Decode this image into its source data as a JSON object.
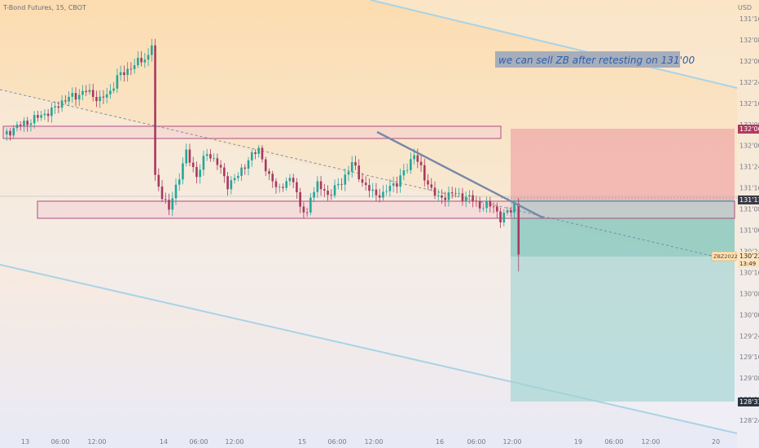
{
  "header": {
    "symbol": "T-Bond Futures, 15, CBOT",
    "currency": "USD"
  },
  "annotation": {
    "text": "we can sell ZB after retesting on 131'00"
  },
  "price_badges": {
    "stop": "132'06",
    "entry": "131'11",
    "symbol": "ZBZ2022",
    "current_price": "130'22",
    "countdown": "13:49",
    "target": "128'31"
  },
  "colors": {
    "bull": "#26a69a",
    "bear": "#a8395f",
    "zone_border": "#b04d7f",
    "trendline": "#7788a8",
    "channel": "#a9d3e6",
    "stop_zone": "#f0a6a6",
    "profit_zone": "#9fd4d2",
    "annotation_bg": "#a6aebc",
    "annotation_text": "#2f5fa8"
  },
  "chart_data": {
    "type": "candlestick",
    "interval": "15",
    "y_tick_labels": [
      "131'16",
      "132'08",
      "132'00",
      "132'24",
      "132'16",
      "132'08",
      "132'00",
      "131'24",
      "131'16",
      "131'08",
      "131'00",
      "130'24",
      "130'16",
      "130'08",
      "130'00",
      "129'24",
      "129'16",
      "129'08",
      "129'00",
      "128'24"
    ],
    "x_tick_labels": [
      "13",
      "06:00",
      "12:00",
      "14",
      "06:00",
      "12:00",
      "15",
      "06:00",
      "12:00",
      "16",
      "06:00",
      "12:00",
      "19",
      "06:00",
      "12:00",
      "20"
    ],
    "levels": {
      "stop": 132.1875,
      "entry": 131.34375,
      "current": 130.6875,
      "target": 128.96875
    },
    "zones": [
      {
        "low": 131.9,
        "high": 132.05
      },
      {
        "low": 131.1,
        "high": 131.3
      }
    ],
    "ohlc_path": [
      [
        0,
        132.1
      ],
      [
        4,
        132.22
      ],
      [
        8,
        132.28
      ],
      [
        10,
        132.33
      ],
      [
        14,
        132.4
      ],
      [
        17,
        132.51
      ],
      [
        19,
        132.56
      ],
      [
        21,
        132.58
      ],
      [
        24,
        132.64
      ],
      [
        28,
        132.53
      ],
      [
        31,
        132.63
      ],
      [
        33,
        132.8
      ],
      [
        37,
        132.92
      ],
      [
        40,
        133.01
      ],
      [
        42,
        133.05
      ],
      [
        43,
        133.2
      ],
      [
        44,
        131.6
      ],
      [
        46,
        131.4
      ],
      [
        48,
        131.22
      ],
      [
        50,
        131.5
      ],
      [
        53,
        131.9
      ],
      [
        56,
        131.63
      ],
      [
        59,
        131.9
      ],
      [
        62,
        131.78
      ],
      [
        65,
        131.52
      ],
      [
        68,
        131.63
      ],
      [
        71,
        131.82
      ],
      [
        74,
        131.95
      ],
      [
        77,
        131.6
      ],
      [
        80,
        131.48
      ],
      [
        84,
        131.6
      ],
      [
        86,
        131.25
      ],
      [
        88,
        131.15
      ],
      [
        89,
        131.4
      ],
      [
        91,
        131.52
      ],
      [
        94,
        131.4
      ],
      [
        98,
        131.55
      ],
      [
        101,
        131.78
      ],
      [
        104,
        131.55
      ],
      [
        107,
        131.42
      ],
      [
        110,
        131.4
      ],
      [
        112,
        131.5
      ],
      [
        114,
        131.55
      ],
      [
        117,
        131.72
      ],
      [
        119,
        131.9
      ],
      [
        122,
        131.6
      ],
      [
        126,
        131.35
      ],
      [
        130,
        131.42
      ],
      [
        133,
        131.38
      ],
      [
        136,
        131.35
      ],
      [
        138,
        131.26
      ],
      [
        142,
        131.28
      ],
      [
        144,
        131.1
      ],
      [
        146,
        131.2
      ],
      [
        148,
        131.28
      ]
    ]
  }
}
